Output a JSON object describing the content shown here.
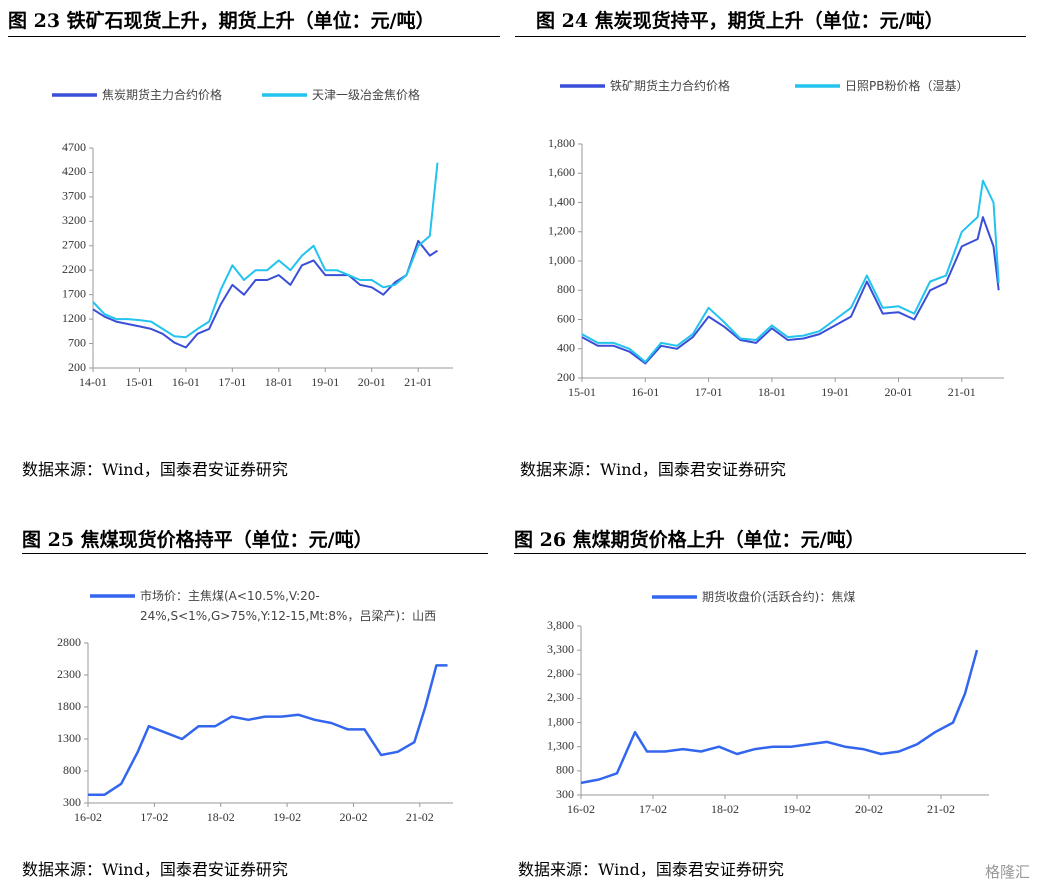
{
  "chart_data": [
    {
      "type": "line",
      "title": "图 23  铁矿石现货上升，期货上升（单位：元/吨）",
      "source": "数据来源：Wind，国泰君安证券研究",
      "x": [
        "14-01",
        "14-04",
        "14-07",
        "14-10",
        "15-01",
        "15-04",
        "15-07",
        "15-10",
        "16-01",
        "16-04",
        "16-07",
        "16-10",
        "17-01",
        "17-04",
        "17-07",
        "17-10",
        "18-01",
        "18-04",
        "18-07",
        "18-10",
        "19-01",
        "19-04",
        "19-07",
        "19-10",
        "20-01",
        "20-04",
        "20-07",
        "20-10",
        "21-01",
        "21-04",
        "21-06"
      ],
      "series": [
        {
          "name": "焦炭期货主力合约价格",
          "color": "#3a4fd8",
          "values": [
            1400,
            1250,
            1150,
            1100,
            1050,
            1000,
            900,
            720,
            620,
            900,
            1000,
            1500,
            1900,
            1700,
            2000,
            2000,
            2100,
            1900,
            2300,
            2400,
            2100,
            2100,
            2100,
            1900,
            1850,
            1700,
            1950,
            2100,
            2800,
            2500,
            2600
          ]
        },
        {
          "name": "天津一级冶金焦价格",
          "color": "#22c3ee",
          "values": [
            1550,
            1300,
            1200,
            1200,
            1180,
            1150,
            1000,
            850,
            830,
            1000,
            1150,
            1800,
            2300,
            2000,
            2200,
            2200,
            2400,
            2200,
            2500,
            2700,
            2200,
            2200,
            2100,
            2000,
            2000,
            1850,
            1900,
            2100,
            2700,
            2900,
            4400
          ]
        }
      ],
      "xlim": [
        "14-01",
        "21-10"
      ],
      "xticks": [
        "14-01",
        "15-01",
        "16-01",
        "17-01",
        "18-01",
        "19-01",
        "20-01",
        "21-01"
      ],
      "ylim": [
        200,
        4700
      ],
      "yticks": [
        200,
        700,
        1200,
        1700,
        2200,
        2700,
        3200,
        3700,
        4200,
        4700
      ]
    },
    {
      "type": "line",
      "title": "图 24  焦炭现货持平，期货上升（单位：元/吨）",
      "source": "数据来源：Wind，国泰君安证券研究",
      "x": [
        "15-01",
        "15-04",
        "15-07",
        "15-10",
        "16-01",
        "16-04",
        "16-07",
        "16-10",
        "17-01",
        "17-04",
        "17-07",
        "17-10",
        "18-01",
        "18-04",
        "18-07",
        "18-10",
        "19-01",
        "19-04",
        "19-07",
        "19-10",
        "20-01",
        "20-04",
        "20-07",
        "20-10",
        "21-01",
        "21-04",
        "21-05",
        "21-07",
        "21-08"
      ],
      "series": [
        {
          "name": "铁矿期货主力合约价格",
          "color": "#3a4fd8",
          "values": [
            480,
            420,
            420,
            380,
            300,
            420,
            400,
            480,
            620,
            550,
            460,
            440,
            540,
            460,
            470,
            500,
            560,
            620,
            860,
            640,
            650,
            600,
            800,
            850,
            1100,
            1150,
            1300,
            1100,
            800
          ]
        },
        {
          "name": "日照PB粉价格（湿基）",
          "color": "#22c3ee",
          "values": [
            500,
            440,
            440,
            400,
            310,
            440,
            420,
            500,
            680,
            580,
            470,
            460,
            560,
            480,
            490,
            520,
            600,
            680,
            900,
            680,
            690,
            640,
            860,
            900,
            1200,
            1300,
            1550,
            1400,
            850
          ]
        }
      ],
      "xlim": [
        "15-01",
        "21-09"
      ],
      "xticks": [
        "15-01",
        "16-01",
        "17-01",
        "18-01",
        "19-01",
        "20-01",
        "21-01"
      ],
      "ylim": [
        200,
        1800
      ],
      "yticks": [
        200,
        400,
        600,
        800,
        {
          "value": 1000,
          "label": "1,000"
        },
        {
          "value": 1200,
          "label": "1,200"
        },
        {
          "value": 1400,
          "label": "1,400"
        },
        {
          "value": 1600,
          "label": "1,600"
        },
        {
          "value": 1800,
          "label": "1,800"
        }
      ]
    },
    {
      "type": "line",
      "title": "图 25  焦煤现货价格持平（单位：元/吨）",
      "source": "数据来源：Wind，国泰君安证券研究",
      "x": [
        "16-02",
        "16-05",
        "16-08",
        "16-11",
        "17-01",
        "17-04",
        "17-07",
        "17-10",
        "18-01",
        "18-04",
        "18-07",
        "18-10",
        "19-01",
        "19-04",
        "19-07",
        "19-10",
        "20-01",
        "20-04",
        "20-07",
        "20-10",
        "21-01",
        "21-03",
        "21-05",
        "21-07"
      ],
      "series": [
        {
          "name": "市场价：主焦煤(A<10.5%,V:20-24%,S<1%,G>75%,Y:12-15,Mt:8%，吕梁产)：山西",
          "color": "#3366ee",
          "values": [
            430,
            430,
            600,
            1100,
            1500,
            1400,
            1300,
            1500,
            1500,
            1650,
            1600,
            1650,
            1650,
            1680,
            1600,
            1550,
            1450,
            1450,
            1050,
            1100,
            1250,
            1800,
            2450,
            2450
          ]
        }
      ],
      "xlim": [
        "16-02",
        "21-08"
      ],
      "xticks": [
        "16-02",
        "17-02",
        "18-02",
        "19-02",
        "20-02",
        "21-02"
      ],
      "ylim": [
        300,
        2800
      ],
      "yticks": [
        300,
        800,
        1300,
        1800,
        2300,
        2800
      ]
    },
    {
      "type": "line",
      "title": "图 26  焦煤期货价格上升（单位：元/吨）",
      "source": "数据来源：Wind，国泰君安证券研究",
      "watermark": "格隆汇",
      "x": [
        "16-02",
        "16-05",
        "16-08",
        "16-11",
        "17-01",
        "17-04",
        "17-07",
        "17-10",
        "18-01",
        "18-04",
        "18-07",
        "18-10",
        "19-01",
        "19-04",
        "19-07",
        "19-10",
        "20-01",
        "20-04",
        "20-07",
        "20-10",
        "21-01",
        "21-04",
        "21-06",
        "21-08"
      ],
      "series": [
        {
          "name": "期货收盘价(活跃合约)：焦煤",
          "color": "#3366ee",
          "values": [
            550,
            620,
            750,
            1600,
            1200,
            1200,
            1250,
            1200,
            1300,
            1150,
            1250,
            1300,
            1300,
            1350,
            1400,
            1300,
            1250,
            1150,
            1200,
            1350,
            1600,
            1800,
            2400,
            3300
          ]
        }
      ],
      "xlim": [
        "16-02",
        "21-10"
      ],
      "xticks": [
        "16-02",
        "17-02",
        "18-02",
        "19-02",
        "20-02",
        "21-02"
      ],
      "ylim": [
        300,
        3800
      ],
      "yticks": [
        300,
        800,
        {
          "value": 1300,
          "label": "1,300"
        },
        {
          "value": 1800,
          "label": "1,800"
        },
        {
          "value": 2300,
          "label": "2,300"
        },
        {
          "value": 2800,
          "label": "2,800"
        },
        {
          "value": 3300,
          "label": "3,300"
        },
        {
          "value": 3800,
          "label": "3,800"
        }
      ]
    }
  ]
}
